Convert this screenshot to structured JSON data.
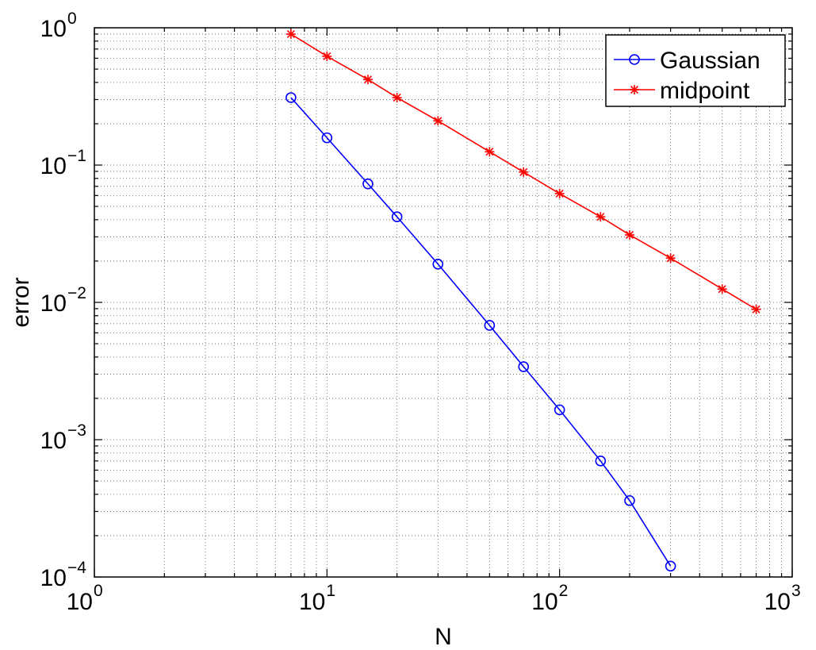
{
  "chart_data": {
    "type": "line",
    "xlabel": "N",
    "ylabel": "error",
    "xscale": "log",
    "yscale": "log",
    "xlim": [
      1,
      1000
    ],
    "ylim": [
      0.0001,
      1
    ],
    "grid": true,
    "legend_placement": "top-right",
    "x_ticks": [
      {
        "base": "10",
        "exp": "0"
      },
      {
        "base": "10",
        "exp": "1"
      },
      {
        "base": "10",
        "exp": "2"
      },
      {
        "base": "10",
        "exp": "3"
      }
    ],
    "y_ticks": [
      {
        "base": "10",
        "exp": "0"
      },
      {
        "base": "10",
        "exp": "−1"
      },
      {
        "base": "10",
        "exp": "−2"
      },
      {
        "base": "10",
        "exp": "−3"
      },
      {
        "base": "10",
        "exp": "−4"
      }
    ],
    "series": [
      {
        "name": "Gaussian",
        "color": "#0000ff",
        "marker": "circle",
        "x": [
          7,
          10,
          15,
          20,
          30,
          50,
          70,
          100,
          150,
          200,
          300
        ],
        "y": [
          0.31,
          0.158,
          0.073,
          0.042,
          0.019,
          0.0068,
          0.0034,
          0.00165,
          0.0007,
          0.00036,
          0.00012
        ]
      },
      {
        "name": "midpoint",
        "color": "#ff0000",
        "marker": "asterisk",
        "x": [
          7,
          10,
          15,
          20,
          30,
          50,
          70,
          100,
          150,
          200,
          300,
          500,
          700
        ],
        "y": [
          0.9,
          0.62,
          0.42,
          0.31,
          0.21,
          0.125,
          0.089,
          0.062,
          0.042,
          0.031,
          0.021,
          0.0125,
          0.0089
        ]
      }
    ]
  }
}
